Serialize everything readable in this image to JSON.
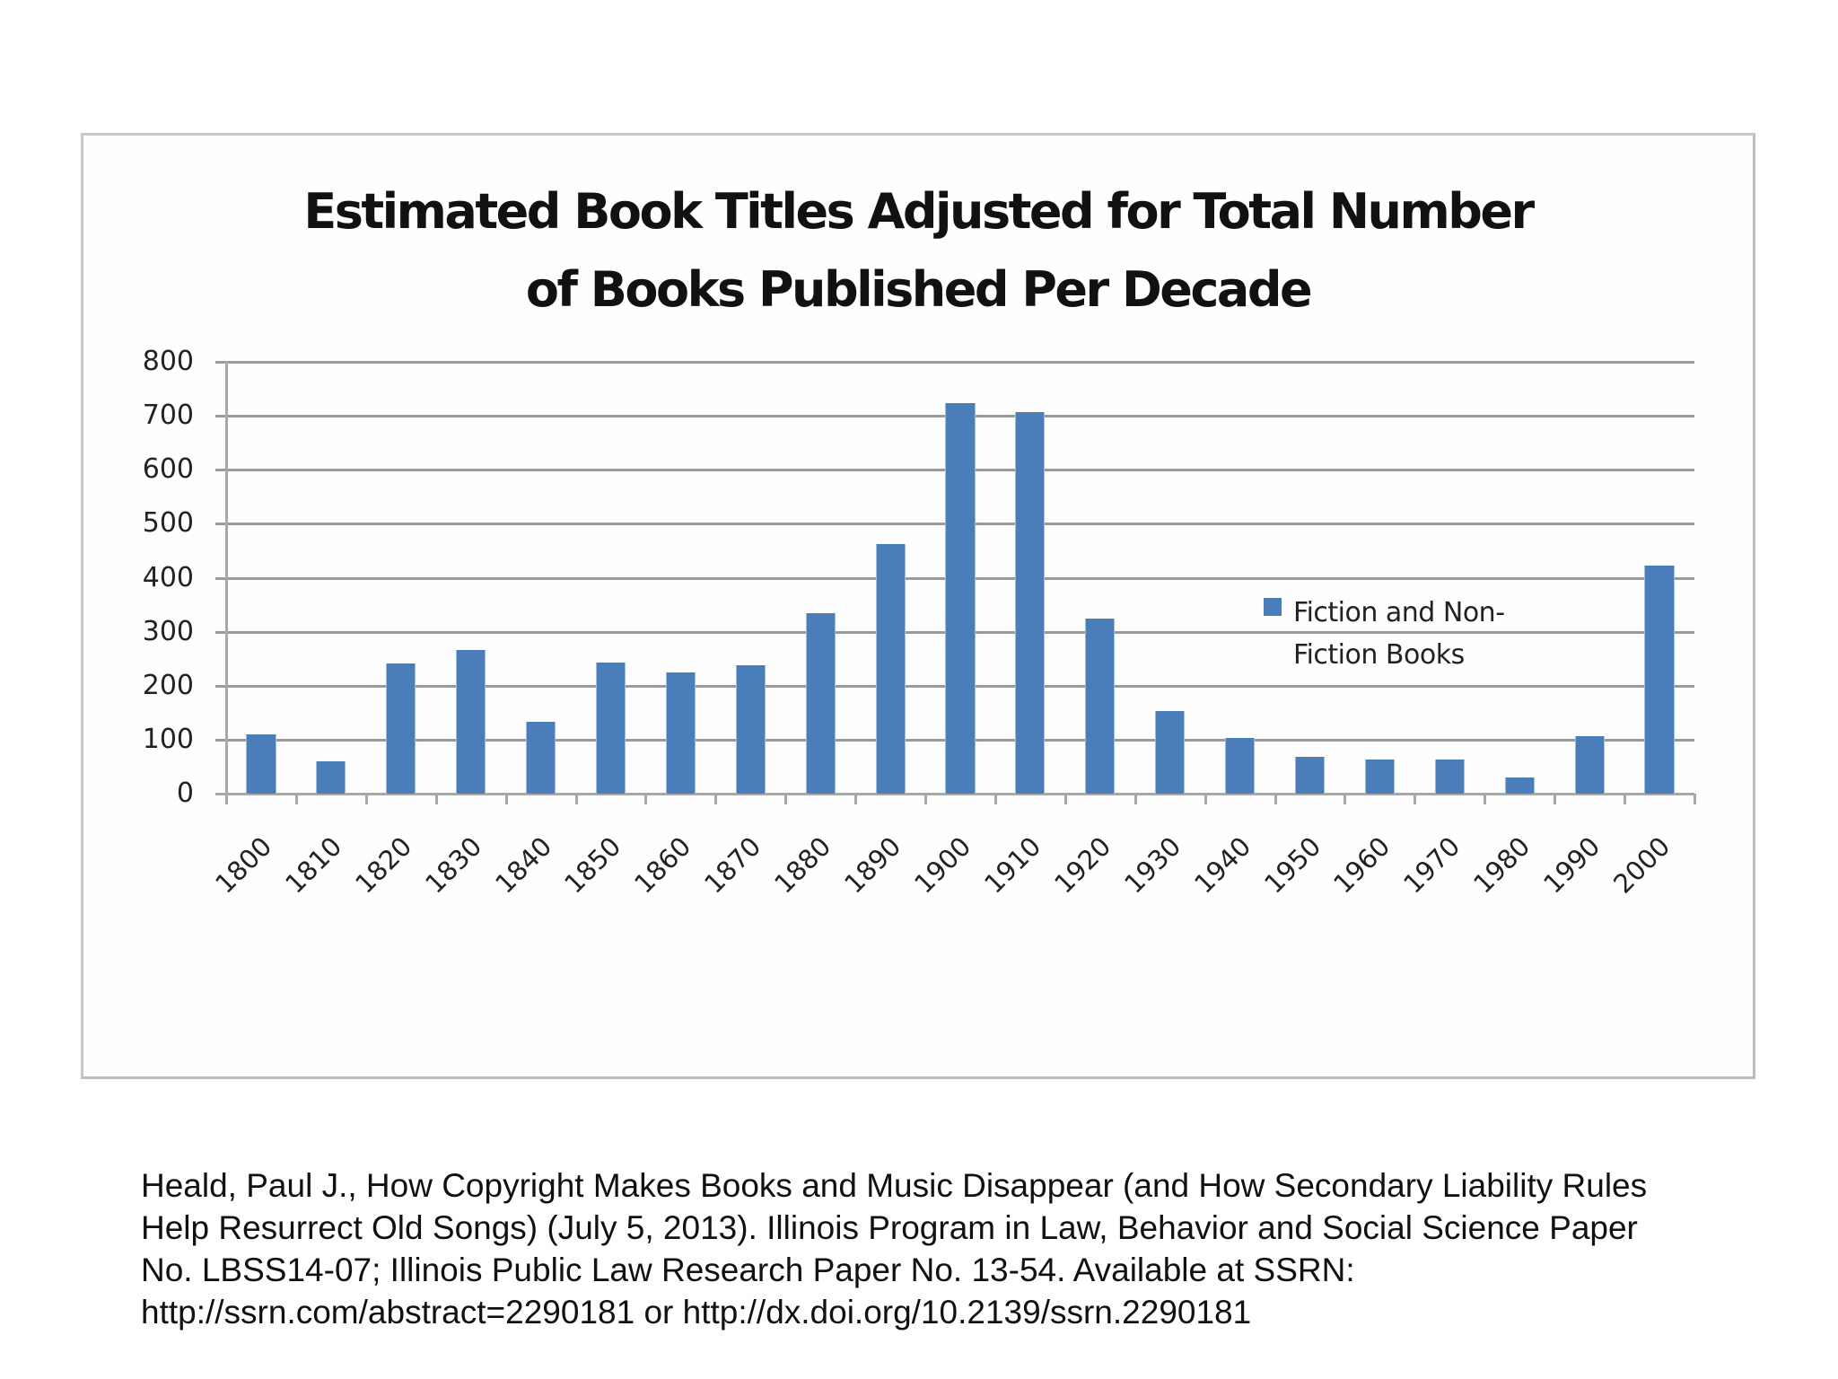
{
  "chart": {
    "title_line1": "Estimated Book Titles Adjusted for Total Number",
    "title_line2": "of Books Published Per Decade",
    "legend": {
      "line1": "Fiction and Non-",
      "line2": "Fiction Books",
      "color": "#4a7ebb"
    },
    "y_ticks": [
      "800",
      "700",
      "600",
      "500",
      "400",
      "300",
      "200",
      "100",
      "0"
    ],
    "bar_color": "#4a7ebb"
  },
  "chart_data": {
    "type": "bar",
    "title": "Estimated Book Titles Adjusted for Total Number of Books Published Per Decade",
    "xlabel": "",
    "ylabel": "",
    "ylim": [
      0,
      800
    ],
    "y_tick_step": 100,
    "grid": true,
    "legend_position": "right-center (inside plot)",
    "categories": [
      "1800",
      "1810",
      "1820",
      "1830",
      "1840",
      "1850",
      "1860",
      "1870",
      "1880",
      "1890",
      "1900",
      "1910",
      "1920",
      "1930",
      "1940",
      "1950",
      "1960",
      "1970",
      "1980",
      "1990",
      "2000"
    ],
    "series": [
      {
        "name": "Fiction and Non-Fiction Books",
        "color": "#4a7ebb",
        "values": [
          110,
          60,
          241,
          266,
          133,
          243,
          224,
          238,
          334,
          463,
          724,
          707,
          324,
          153,
          103,
          69,
          63,
          64,
          30,
          107,
          422
        ]
      }
    ]
  },
  "citation": {
    "lines": [
      "Heald, Paul J., How Copyright Makes Books and Music Disappear (and How Secondary Liability Rules",
      "Help Resurrect Old Songs) (July 5, 2013). Illinois Program in Law, Behavior and Social Science Paper",
      "No. LBSS14-07; Illinois Public Law Research Paper No. 13-54. Available at SSRN:",
      "http://ssrn.com/abstract=2290181 or http://dx.doi.org/10.2139/ssrn.2290181"
    ]
  }
}
